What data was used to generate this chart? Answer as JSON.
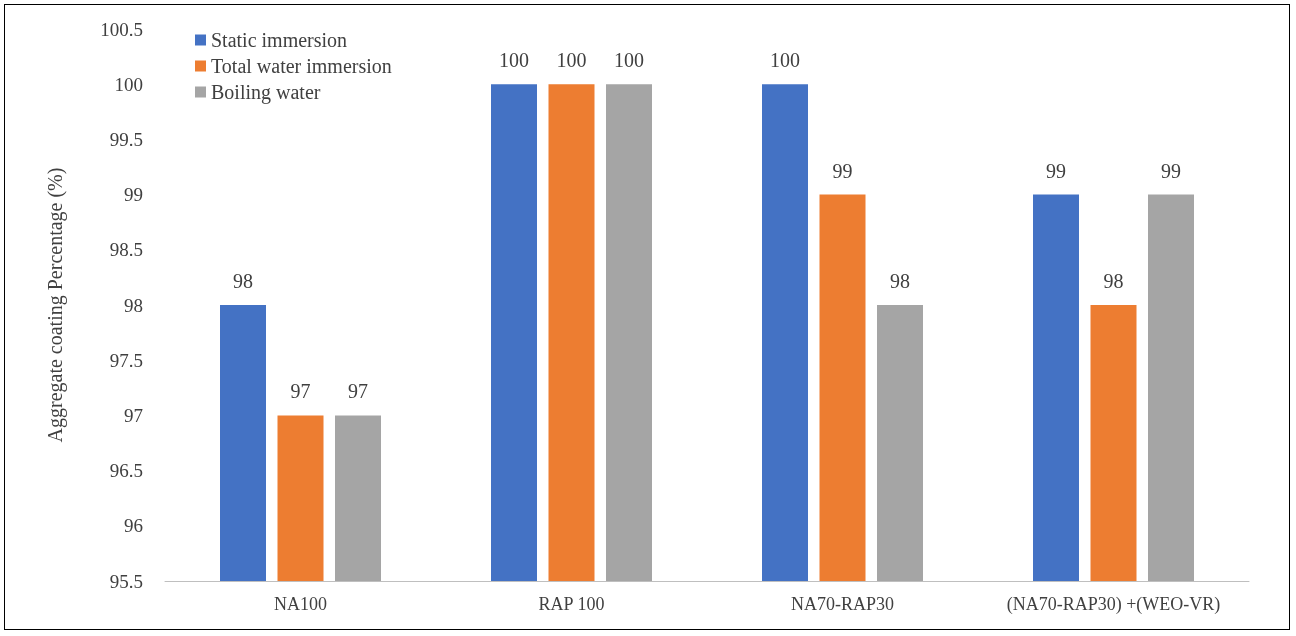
{
  "chart_data": {
    "type": "bar",
    "ylabel": "Aggregate coating Percentage (%)",
    "categories": [
      "NA100",
      "RAP 100",
      "NA70-RAP30",
      "(NA70-RAP30) +(WEO-VR)"
    ],
    "series": [
      {
        "name": "Static immersion",
        "color": "#4472c4",
        "values": [
          98,
          100,
          100,
          99
        ]
      },
      {
        "name": "Total water immersion",
        "color": "#ed7d31",
        "values": [
          97,
          100,
          99,
          98
        ]
      },
      {
        "name": "Boiling water",
        "color": "#a5a5a5",
        "values": [
          97,
          100,
          98,
          99
        ]
      }
    ],
    "ylim": [
      95.5,
      100.5
    ],
    "yticks": [
      95.5,
      96,
      96.5,
      97,
      97.5,
      98,
      98.5,
      99,
      99.5,
      100,
      100.5
    ],
    "data_labels": true,
    "legend": "top left",
    "grid": false
  }
}
